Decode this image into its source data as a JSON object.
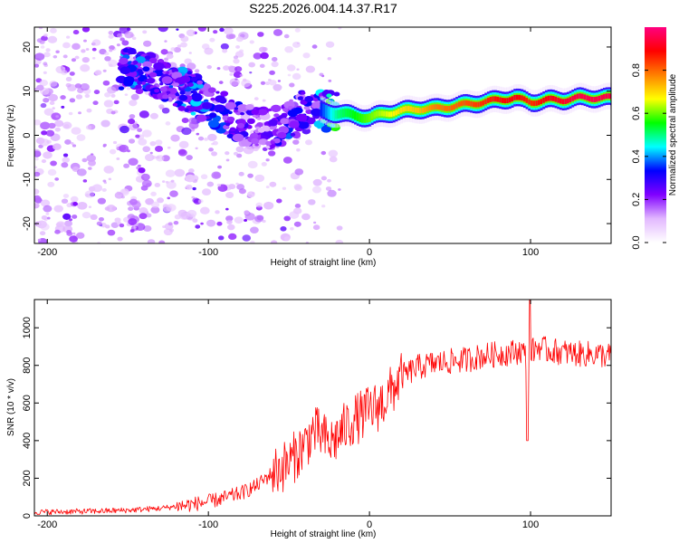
{
  "title": "S225.2026.004.14.37.R17",
  "chart_data": [
    {
      "type": "heatmap",
      "panel": "spectrogram",
      "xlabel": "Height of straight line (km)",
      "ylabel": "Frequency (Hz)",
      "xlim": [
        -208,
        150
      ],
      "ylim": [
        -24.5,
        24.5
      ],
      "xticks": [
        -200,
        -100,
        0,
        100
      ],
      "yticks": [
        -20,
        -10,
        0,
        10,
        20
      ],
      "colorbar": {
        "label": "Normalized spectral amplitude",
        "range": [
          0,
          1
        ],
        "ticks": [
          "0.0",
          "0.2",
          "0.4",
          "0.6",
          "0.8"
        ],
        "tick_values": [
          0.0,
          0.2,
          0.4,
          0.6,
          0.8
        ],
        "colors": [
          "#ffffff",
          "#e2b8ff",
          "#8000ff",
          "#0000ff",
          "#00ffff",
          "#00ff00",
          "#ffff00",
          "#ff8000",
          "#ff0000",
          "#ff0080"
        ]
      },
      "ridge": {
        "x": [
          -150,
          -140,
          -130,
          -120,
          -110,
          -100,
          -90,
          -80,
          -70,
          -60,
          -50,
          -40,
          -30,
          -20,
          -10,
          0,
          10,
          20,
          30,
          40,
          50,
          60,
          70,
          80,
          90,
          100,
          110,
          120,
          130,
          140,
          150
        ],
        "freq": [
          15,
          14,
          13,
          11,
          9.5,
          7,
          5,
          3,
          2,
          1.5,
          3,
          6,
          5.5,
          5,
          4.5,
          4,
          5,
          5.5,
          6,
          6,
          6.5,
          7,
          7.5,
          8,
          8.5,
          7.5,
          8,
          8,
          8.5,
          8.5,
          8.5
        ],
        "amplitude": [
          0.35,
          0.3,
          0.25,
          0.3,
          0.35,
          0.3,
          0.28,
          0.25,
          0.2,
          0.22,
          0.3,
          0.25,
          0.35,
          0.5,
          0.55,
          0.6,
          0.65,
          0.7,
          0.72,
          0.78,
          0.8,
          0.82,
          0.85,
          0.88,
          0.9,
          0.85,
          0.9,
          0.92,
          0.95,
          0.95,
          0.95
        ]
      }
    },
    {
      "type": "line",
      "panel": "snr",
      "xlabel": "Height of straight line (km)",
      "ylabel": "SNR (10 * v/v)",
      "xlim": [
        -208,
        150
      ],
      "ylim": [
        0,
        1150
      ],
      "xticks": [
        -200,
        -100,
        0,
        100
      ],
      "yticks": [
        0,
        200,
        400,
        600,
        800,
        1000
      ],
      "color": "#ff0000",
      "series": [
        {
          "name": "SNR",
          "x": [
            -208,
            -190,
            -170,
            -150,
            -130,
            -115,
            -100,
            -90,
            -80,
            -70,
            -60,
            -50,
            -40,
            -35,
            -30,
            -25,
            -20,
            -15,
            -10,
            -5,
            0,
            5,
            10,
            15,
            20,
            30,
            40,
            50,
            60,
            70,
            80,
            90,
            95,
            98,
            100,
            105,
            110,
            120,
            130,
            140,
            150
          ],
          "y": [
            20,
            22,
            25,
            30,
            40,
            55,
            75,
            95,
            120,
            160,
            230,
            280,
            380,
            450,
            430,
            380,
            420,
            470,
            510,
            530,
            560,
            580,
            620,
            680,
            740,
            790,
            810,
            820,
            830,
            850,
            860,
            870,
            880,
            820,
            870,
            900,
            880,
            870,
            860,
            860,
            850
          ]
        }
      ],
      "annotations": [
        {
          "x": 98,
          "y": 400,
          "note": "sharp dip"
        },
        {
          "x": 99,
          "y": 1150,
          "note": "spike"
        }
      ]
    }
  ]
}
